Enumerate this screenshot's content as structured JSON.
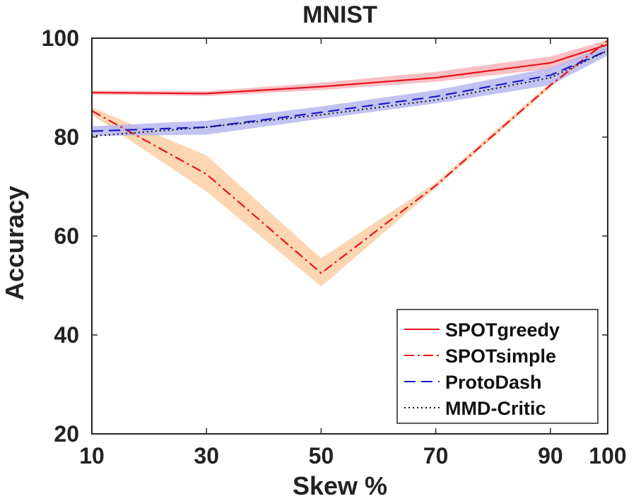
{
  "chart_data": {
    "type": "line",
    "title": "MNIST",
    "xlabel": "Skew %",
    "ylabel": "Accuracy",
    "x": [
      10,
      30,
      50,
      70,
      90,
      100
    ],
    "x_ticks": [
      "10",
      "30",
      "50",
      "70",
      "90",
      "100"
    ],
    "y_ticks": [
      "20",
      "40",
      "60",
      "80",
      "100"
    ],
    "xlim": [
      10,
      100
    ],
    "ylim": [
      20,
      100
    ],
    "legend_position": "bottom-right",
    "colors": {
      "red": "#e8141e",
      "blue": "#1a1acc",
      "black": "#111111",
      "orange_band": "#fbc89a",
      "red_band": "#f5aab0",
      "blue_band": "#b3b3f0"
    },
    "series": [
      {
        "name": "SPOTgreedy",
        "values": [
          89,
          88.8,
          90.2,
          92,
          95,
          98.7
        ],
        "lower": [
          88.6,
          88.3,
          89.5,
          91.2,
          93.8,
          97.8
        ],
        "upper": [
          89.4,
          89.3,
          91,
          93.2,
          96.3,
          99.6
        ]
      },
      {
        "name": "SPOTsimple",
        "values": [
          85.3,
          72.5,
          52.5,
          70.2,
          90.5,
          99.5
        ],
        "lower": [
          84.5,
          69,
          49.8,
          69.7,
          90,
          99
        ],
        "upper": [
          86,
          76.3,
          55.5,
          70.8,
          91,
          100
        ]
      },
      {
        "name": "ProtoDash",
        "values": [
          81.2,
          82,
          85,
          88.2,
          92.5,
          97.5
        ],
        "lower": [
          80.2,
          80.5,
          83.7,
          86.8,
          90.5,
          96.5
        ],
        "upper": [
          82.2,
          83.3,
          86.2,
          89.5,
          94,
          98.5
        ]
      },
      {
        "name": "MMD-Critic",
        "values": [
          80.2,
          82,
          84.5,
          87.5,
          92,
          97.5
        ]
      }
    ]
  }
}
